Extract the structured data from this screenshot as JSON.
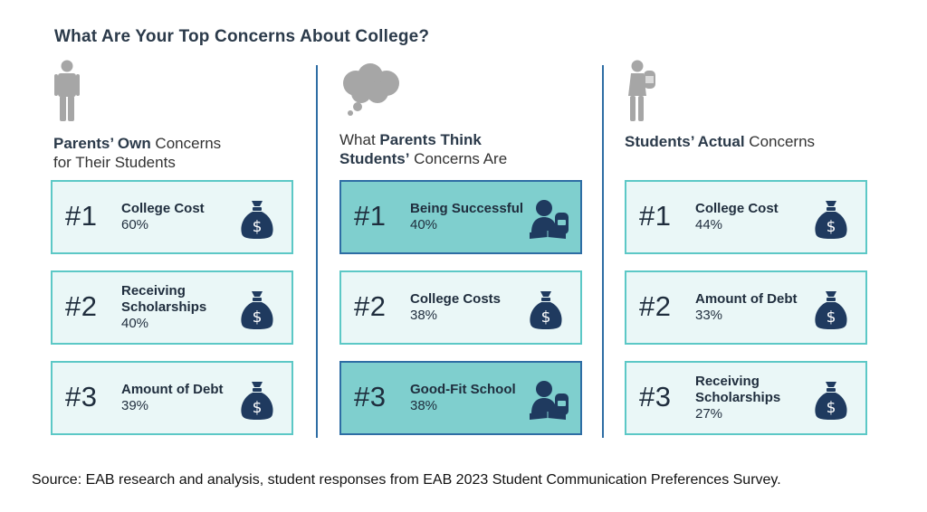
{
  "title": "What Are Your Top Concerns About College?",
  "columns": [
    {
      "heading_bold": "Parents’ Own",
      "heading_rest": " Concerns",
      "heading_line2": "for Their Students",
      "icon": "person-icon",
      "items": [
        {
          "rank": "#1",
          "concern": "College Cost",
          "percent": "60%",
          "icon": "money-bag-icon",
          "highlight": false
        },
        {
          "rank": "#2",
          "concern": "Receiving Scholarships",
          "percent": "40%",
          "icon": "money-bag-icon",
          "highlight": false
        },
        {
          "rank": "#3",
          "concern": "Amount of Debt",
          "percent": "39%",
          "icon": "money-bag-icon",
          "highlight": false
        }
      ]
    },
    {
      "heading_pre": "What ",
      "heading_bold": "Parents Think",
      "heading_line2_bold": "Students’",
      "heading_line2_rest": " Concerns Are",
      "icon": "thought-cloud-icon",
      "items": [
        {
          "rank": "#1",
          "concern": "Being Successful",
          "percent": "40%",
          "icon": "student-reading-icon",
          "highlight": true
        },
        {
          "rank": "#2",
          "concern": "College Costs",
          "percent": "38%",
          "icon": "money-bag-icon",
          "highlight": false
        },
        {
          "rank": "#3",
          "concern": "Good-Fit School",
          "percent": "38%",
          "icon": "student-reading-icon",
          "highlight": true
        }
      ]
    },
    {
      "heading_bold": "Students’ Actual",
      "heading_rest": " Concerns",
      "icon": "student-backpack-icon",
      "items": [
        {
          "rank": "#1",
          "concern": "College Cost",
          "percent": "44%",
          "icon": "money-bag-icon",
          "highlight": false
        },
        {
          "rank": "#2",
          "concern": "Amount of Debt",
          "percent": "33%",
          "icon": "money-bag-icon",
          "highlight": false
        },
        {
          "rank": "#3",
          "concern": "Receiving Scholarships",
          "percent": "27%",
          "icon": "money-bag-icon",
          "highlight": false
        }
      ]
    }
  ],
  "source": "Source: EAB research and analysis, student responses from EAB 2023 Student Communication Preferences Survey.",
  "colors": {
    "card_border": "#5cc8c6",
    "card_bg": "#eaf7f7",
    "card_highlight_bg": "#7fcfce",
    "card_highlight_border": "#2e6da4",
    "icon_navy": "#1f3a5f",
    "divider": "#2e6da4",
    "header_icon_gray": "#a6a6a6"
  }
}
